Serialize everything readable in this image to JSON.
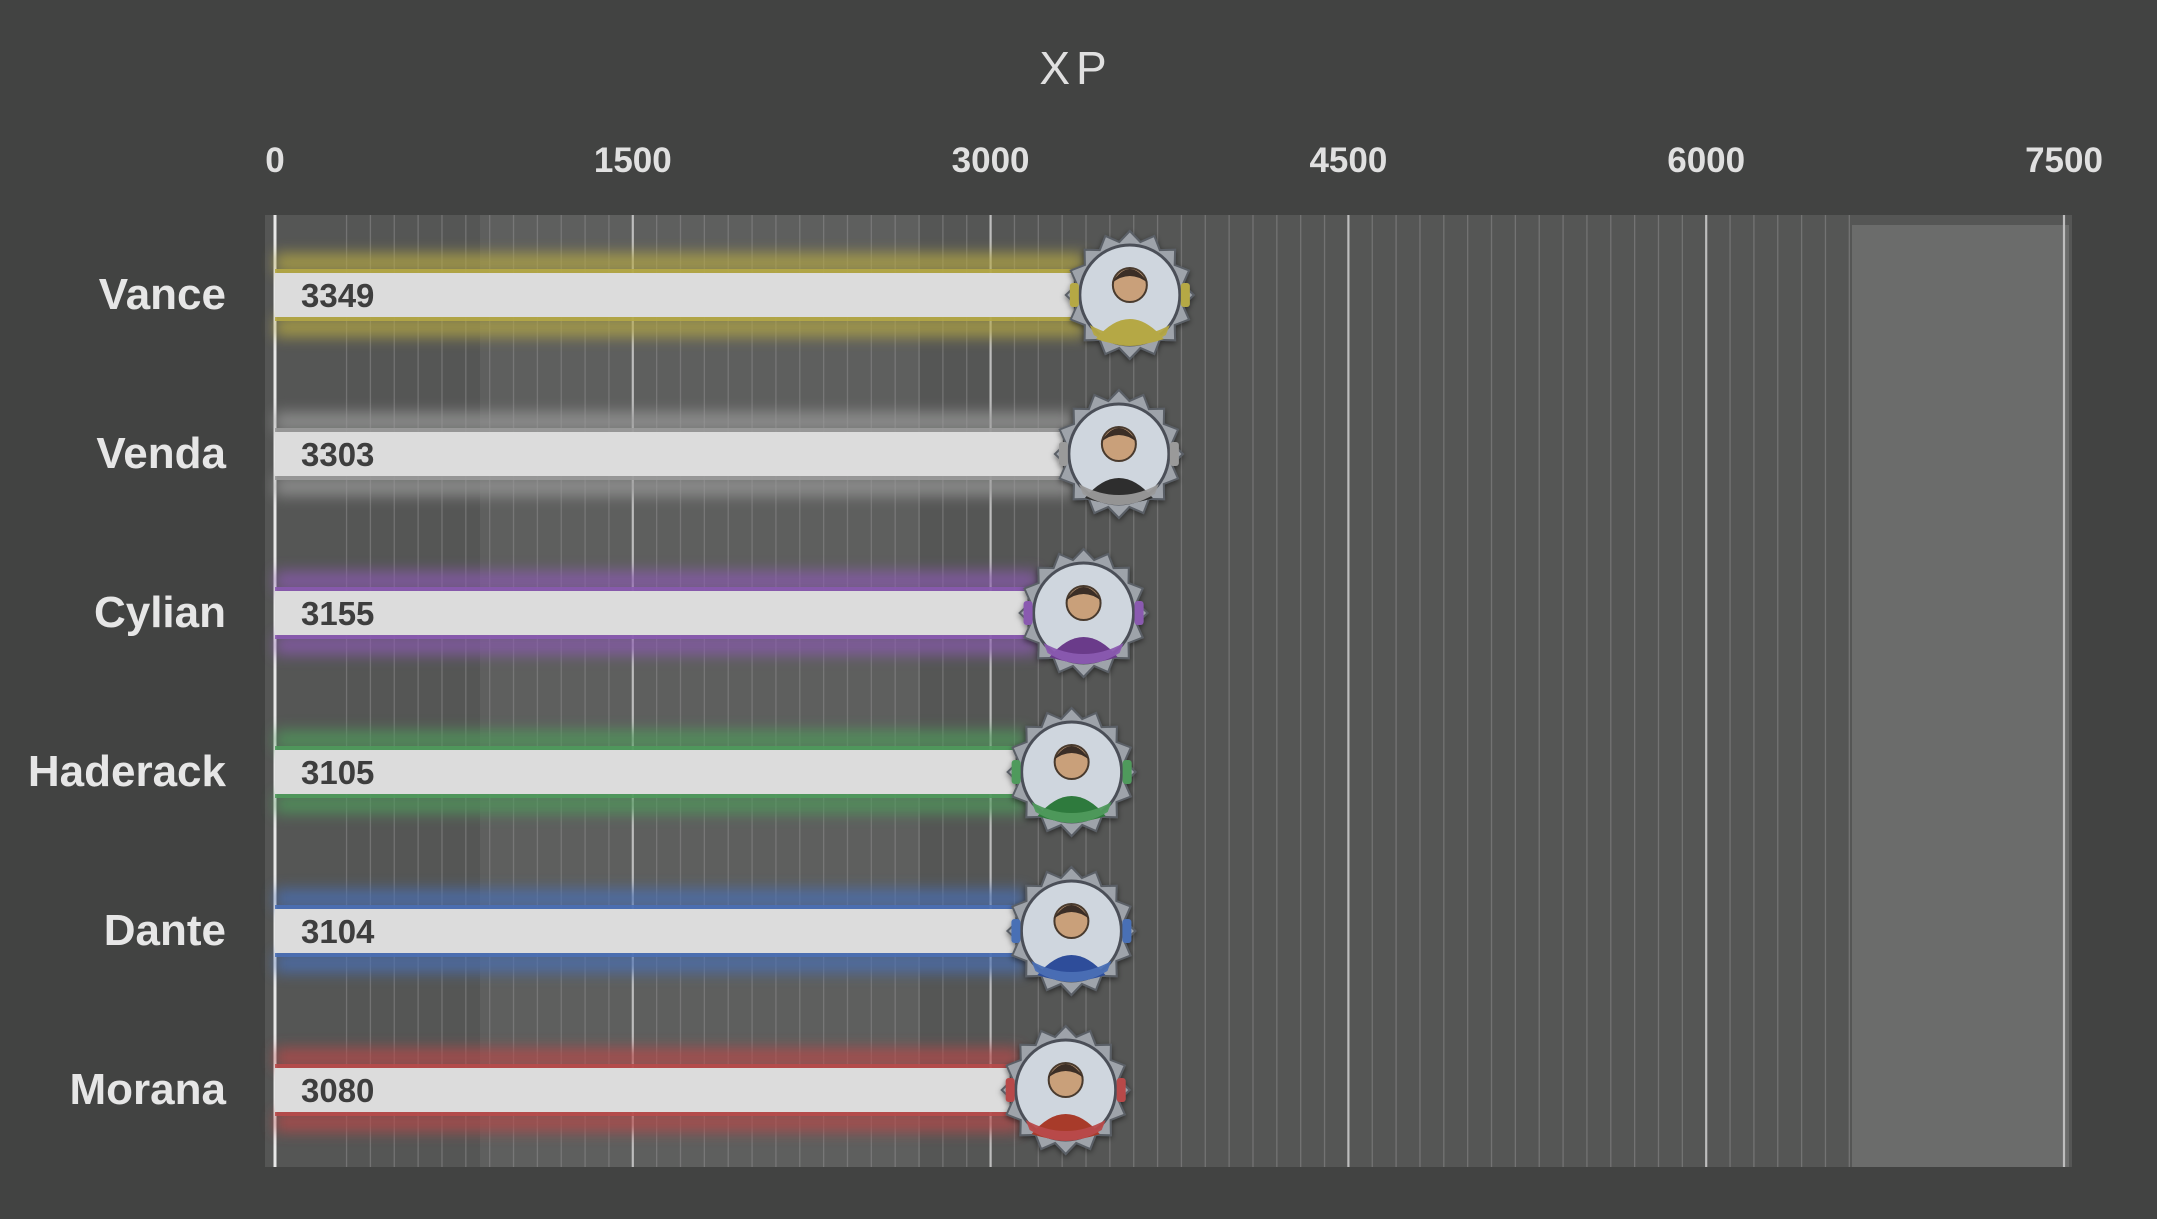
{
  "colors": {
    "background": "#424342",
    "plot_background": "#555655",
    "bar_fill": "#dcdcdc",
    "value_text": "#3e3e3e",
    "label_text": "#e6e6e6",
    "axis_text": "#e0e0e0",
    "gridline": "#8c8c8c"
  },
  "chart_data": {
    "type": "bar",
    "orientation": "horizontal",
    "title": "XP",
    "xlim": [
      0,
      7500
    ],
    "xticks": [
      "0",
      "1500",
      "3000",
      "4500",
      "6000",
      "7500"
    ],
    "xtick_values": [
      0,
      1500,
      3000,
      4500,
      6000,
      7500
    ],
    "x_axis_position": "top",
    "grid": true,
    "legend": "none",
    "categories": [
      "Vance",
      "Venda",
      "Cylian",
      "Haderack",
      "Dante",
      "Morana"
    ],
    "values": [
      3349,
      3303,
      3155,
      3105,
      3104,
      3080
    ],
    "value_labels": [
      "3349",
      "3303",
      "3155",
      "3105",
      "3104",
      "3080"
    ],
    "glow_colors": [
      "#b5a845",
      "#9a9a9a",
      "#8a5ab0",
      "#4f9a5c",
      "#4a6fb5",
      "#b84a4a"
    ],
    "avatar_colors": [
      "#b5a845",
      "#2e2e2e",
      "#6a3a8a",
      "#2f7a3c",
      "#2d4e9a",
      "#a83a2a"
    ],
    "avatar_icons": [
      "character-portrait-icon",
      "character-portrait-icon",
      "character-portrait-icon",
      "character-portrait-icon",
      "character-portrait-icon",
      "character-portrait-icon"
    ]
  }
}
